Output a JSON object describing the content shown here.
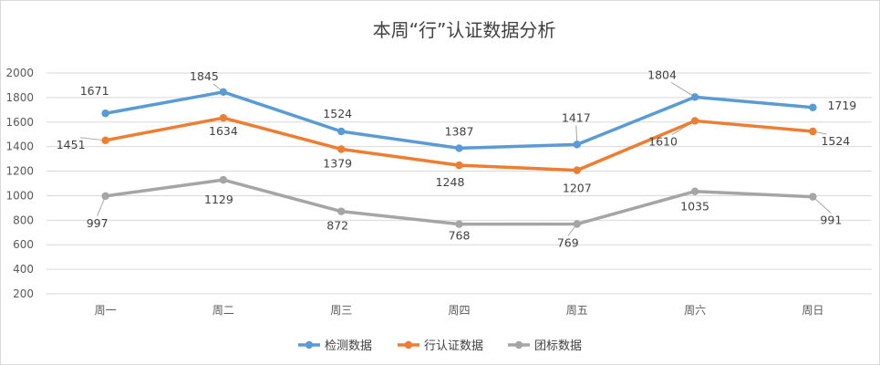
{
  "chart_data": {
    "type": "line",
    "title": "本周“行”认证数据分析",
    "categories": [
      "周一",
      "周二",
      "周三",
      "周四",
      "周五",
      "周六",
      "周日"
    ],
    "yticks": [
      200,
      400,
      600,
      800,
      1000,
      1200,
      1400,
      1600,
      1800,
      2000
    ],
    "ylim": [
      200,
      2000
    ],
    "grid": true,
    "legend": "bottom",
    "series": [
      {
        "name": "检测数据",
        "color": "#5b9bd5",
        "values": [
          1671,
          1845,
          1524,
          1387,
          1417,
          1804,
          1719
        ]
      },
      {
        "name": "行认证数据",
        "color": "#ed7d31",
        "values": [
          1451,
          1634,
          1379,
          1248,
          1207,
          1610,
          1524
        ]
      },
      {
        "name": "团标数据",
        "color": "#a5a5a5",
        "values": [
          997,
          1129,
          872,
          768,
          769,
          1035,
          991
        ]
      }
    ]
  }
}
